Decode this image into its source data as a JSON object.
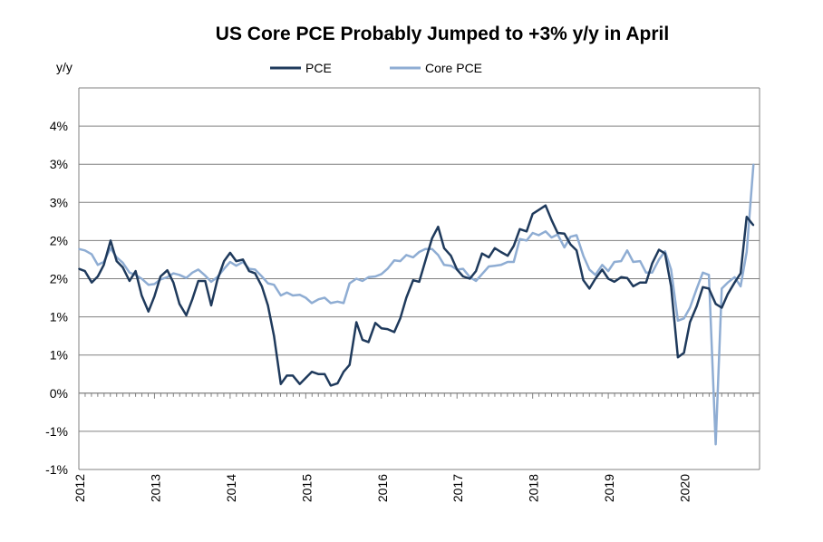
{
  "chart_data": {
    "type": "line",
    "title": "US Core PCE Probably Jumped to +3% y/y in April",
    "ylabel": "y/y",
    "xlabel": "",
    "ylim": [
      -1,
      4
    ],
    "yticks": [
      -1,
      -0.5,
      0,
      0.5,
      1,
      1.5,
      2,
      2.5,
      3,
      3.5
    ],
    "ytick_labels": [
      "-1%",
      "-1%",
      "0%",
      "1%",
      "1%",
      "2%",
      "2%",
      "3%",
      "3%",
      "4%"
    ],
    "xlim": [
      2012,
      2021
    ],
    "x_tick_labels": [
      "2012",
      "2013",
      "2014",
      "2015",
      "2016",
      "2017",
      "2018",
      "2019",
      "2020"
    ],
    "grid": true,
    "legend_position": "top",
    "series": [
      {
        "name": "PCE",
        "color": "#1f3a5c",
        "points": [
          [
            2012.0,
            1.63
          ],
          [
            2012.08,
            1.6
          ],
          [
            2012.17,
            1.45
          ],
          [
            2012.25,
            1.53
          ],
          [
            2012.33,
            1.68
          ],
          [
            2012.42,
            2.0
          ],
          [
            2012.5,
            1.73
          ],
          [
            2012.58,
            1.65
          ],
          [
            2012.67,
            1.47
          ],
          [
            2012.75,
            1.6
          ],
          [
            2012.83,
            1.28
          ],
          [
            2012.92,
            1.07
          ],
          [
            2013.0,
            1.27
          ],
          [
            2013.08,
            1.53
          ],
          [
            2013.17,
            1.61
          ],
          [
            2013.25,
            1.45
          ],
          [
            2013.33,
            1.17
          ],
          [
            2013.42,
            1.02
          ],
          [
            2013.5,
            1.23
          ],
          [
            2013.58,
            1.47
          ],
          [
            2013.67,
            1.47
          ],
          [
            2013.75,
            1.15
          ],
          [
            2013.83,
            1.48
          ],
          [
            2013.92,
            1.73
          ],
          [
            2014.0,
            1.84
          ],
          [
            2014.08,
            1.73
          ],
          [
            2014.17,
            1.75
          ],
          [
            2014.25,
            1.6
          ],
          [
            2014.33,
            1.57
          ],
          [
            2014.42,
            1.4
          ],
          [
            2014.5,
            1.15
          ],
          [
            2014.58,
            0.75
          ],
          [
            2014.67,
            0.12
          ],
          [
            2014.75,
            0.23
          ],
          [
            2014.83,
            0.23
          ],
          [
            2014.92,
            0.12
          ],
          [
            2015.0,
            0.2
          ],
          [
            2015.08,
            0.28
          ],
          [
            2015.17,
            0.25
          ],
          [
            2015.25,
            0.25
          ],
          [
            2015.33,
            0.1
          ],
          [
            2015.42,
            0.13
          ],
          [
            2015.5,
            0.28
          ],
          [
            2015.58,
            0.37
          ],
          [
            2015.67,
            0.93
          ],
          [
            2015.75,
            0.7
          ],
          [
            2015.83,
            0.67
          ],
          [
            2015.92,
            0.92
          ],
          [
            2016.0,
            0.85
          ],
          [
            2016.08,
            0.84
          ],
          [
            2016.17,
            0.8
          ],
          [
            2016.25,
            0.98
          ],
          [
            2016.33,
            1.25
          ],
          [
            2016.42,
            1.48
          ],
          [
            2016.5,
            1.46
          ],
          [
            2016.58,
            1.73
          ],
          [
            2016.67,
            2.03
          ],
          [
            2016.75,
            2.18
          ],
          [
            2016.83,
            1.9
          ],
          [
            2016.92,
            1.8
          ],
          [
            2017.0,
            1.62
          ],
          [
            2017.08,
            1.53
          ],
          [
            2017.17,
            1.5
          ],
          [
            2017.25,
            1.6
          ],
          [
            2017.33,
            1.83
          ],
          [
            2017.42,
            1.78
          ],
          [
            2017.5,
            1.9
          ],
          [
            2017.58,
            1.85
          ],
          [
            2017.67,
            1.8
          ],
          [
            2017.75,
            1.93
          ],
          [
            2017.83,
            2.15
          ],
          [
            2017.92,
            2.12
          ],
          [
            2018.0,
            2.35
          ],
          [
            2018.08,
            2.4
          ],
          [
            2018.17,
            2.46
          ],
          [
            2018.25,
            2.27
          ],
          [
            2018.33,
            2.1
          ],
          [
            2018.42,
            2.09
          ],
          [
            2018.5,
            1.95
          ],
          [
            2018.58,
            1.87
          ],
          [
            2018.67,
            1.48
          ],
          [
            2018.75,
            1.37
          ],
          [
            2018.83,
            1.5
          ],
          [
            2018.92,
            1.62
          ],
          [
            2019.0,
            1.5
          ],
          [
            2019.08,
            1.46
          ],
          [
            2019.17,
            1.52
          ],
          [
            2019.25,
            1.51
          ],
          [
            2019.33,
            1.4
          ],
          [
            2019.42,
            1.45
          ],
          [
            2019.5,
            1.45
          ],
          [
            2019.58,
            1.7
          ],
          [
            2019.67,
            1.88
          ],
          [
            2019.75,
            1.83
          ],
          [
            2019.83,
            1.4
          ],
          [
            2019.92,
            0.47
          ],
          [
            2020.0,
            0.53
          ],
          [
            2020.08,
            0.93
          ],
          [
            2020.17,
            1.14
          ],
          [
            2020.25,
            1.39
          ],
          [
            2020.33,
            1.37
          ],
          [
            2020.42,
            1.17
          ],
          [
            2020.5,
            1.12
          ],
          [
            2020.58,
            1.3
          ],
          [
            2020.67,
            1.45
          ],
          [
            2020.75,
            1.57
          ],
          [
            2020.83,
            2.31
          ],
          [
            2020.92,
            2.2
          ]
        ]
      },
      {
        "name": "Core PCE",
        "color": "#8fadd3",
        "points": [
          [
            2012.0,
            1.89
          ],
          [
            2012.08,
            1.87
          ],
          [
            2012.17,
            1.82
          ],
          [
            2012.25,
            1.68
          ],
          [
            2012.33,
            1.72
          ],
          [
            2012.42,
            1.9
          ],
          [
            2012.5,
            1.78
          ],
          [
            2012.58,
            1.71
          ],
          [
            2012.67,
            1.58
          ],
          [
            2012.75,
            1.55
          ],
          [
            2012.83,
            1.5
          ],
          [
            2012.92,
            1.42
          ],
          [
            2013.0,
            1.43
          ],
          [
            2013.08,
            1.49
          ],
          [
            2013.17,
            1.52
          ],
          [
            2013.25,
            1.57
          ],
          [
            2013.33,
            1.55
          ],
          [
            2013.42,
            1.51
          ],
          [
            2013.5,
            1.58
          ],
          [
            2013.58,
            1.62
          ],
          [
            2013.67,
            1.54
          ],
          [
            2013.75,
            1.46
          ],
          [
            2013.83,
            1.52
          ],
          [
            2013.92,
            1.63
          ],
          [
            2014.0,
            1.72
          ],
          [
            2014.08,
            1.67
          ],
          [
            2014.17,
            1.72
          ],
          [
            2014.25,
            1.63
          ],
          [
            2014.33,
            1.62
          ],
          [
            2014.42,
            1.53
          ],
          [
            2014.5,
            1.44
          ],
          [
            2014.58,
            1.42
          ],
          [
            2014.67,
            1.28
          ],
          [
            2014.75,
            1.32
          ],
          [
            2014.83,
            1.28
          ],
          [
            2014.92,
            1.29
          ],
          [
            2015.0,
            1.25
          ],
          [
            2015.08,
            1.18
          ],
          [
            2015.17,
            1.23
          ],
          [
            2015.25,
            1.25
          ],
          [
            2015.33,
            1.18
          ],
          [
            2015.42,
            1.2
          ],
          [
            2015.5,
            1.18
          ],
          [
            2015.58,
            1.44
          ],
          [
            2015.67,
            1.5
          ],
          [
            2015.75,
            1.47
          ],
          [
            2015.83,
            1.52
          ],
          [
            2015.92,
            1.53
          ],
          [
            2016.0,
            1.56
          ],
          [
            2016.08,
            1.63
          ],
          [
            2016.17,
            1.74
          ],
          [
            2016.25,
            1.73
          ],
          [
            2016.33,
            1.81
          ],
          [
            2016.42,
            1.78
          ],
          [
            2016.5,
            1.85
          ],
          [
            2016.58,
            1.89
          ],
          [
            2016.67,
            1.89
          ],
          [
            2016.75,
            1.81
          ],
          [
            2016.83,
            1.68
          ],
          [
            2016.92,
            1.67
          ],
          [
            2017.0,
            1.62
          ],
          [
            2017.08,
            1.63
          ],
          [
            2017.17,
            1.52
          ],
          [
            2017.25,
            1.47
          ],
          [
            2017.33,
            1.56
          ],
          [
            2017.42,
            1.66
          ],
          [
            2017.5,
            1.67
          ],
          [
            2017.58,
            1.68
          ],
          [
            2017.67,
            1.72
          ],
          [
            2017.75,
            1.72
          ],
          [
            2017.83,
            2.02
          ],
          [
            2017.92,
            2.0
          ],
          [
            2018.0,
            2.1
          ],
          [
            2018.08,
            2.07
          ],
          [
            2018.17,
            2.12
          ],
          [
            2018.25,
            2.04
          ],
          [
            2018.33,
            2.08
          ],
          [
            2018.42,
            1.91
          ],
          [
            2018.5,
            2.05
          ],
          [
            2018.58,
            2.07
          ],
          [
            2018.67,
            1.8
          ],
          [
            2018.75,
            1.62
          ],
          [
            2018.83,
            1.55
          ],
          [
            2018.92,
            1.68
          ],
          [
            2019.0,
            1.6
          ],
          [
            2019.08,
            1.72
          ],
          [
            2019.17,
            1.73
          ],
          [
            2019.25,
            1.87
          ],
          [
            2019.33,
            1.72
          ],
          [
            2019.42,
            1.73
          ],
          [
            2019.5,
            1.58
          ],
          [
            2019.58,
            1.58
          ],
          [
            2019.67,
            1.75
          ],
          [
            2019.75,
            1.86
          ],
          [
            2019.83,
            1.62
          ],
          [
            2019.92,
            0.95
          ],
          [
            2020.0,
            0.98
          ],
          [
            2020.08,
            1.12
          ],
          [
            2020.17,
            1.37
          ],
          [
            2020.25,
            1.58
          ],
          [
            2020.33,
            1.55
          ],
          [
            2020.42,
            -0.67
          ],
          [
            2020.5,
            1.37
          ],
          [
            2020.58,
            1.45
          ],
          [
            2020.67,
            1.52
          ],
          [
            2020.75,
            1.4
          ],
          [
            2020.83,
            1.85
          ],
          [
            2020.92,
            3.0
          ]
        ]
      }
    ]
  }
}
